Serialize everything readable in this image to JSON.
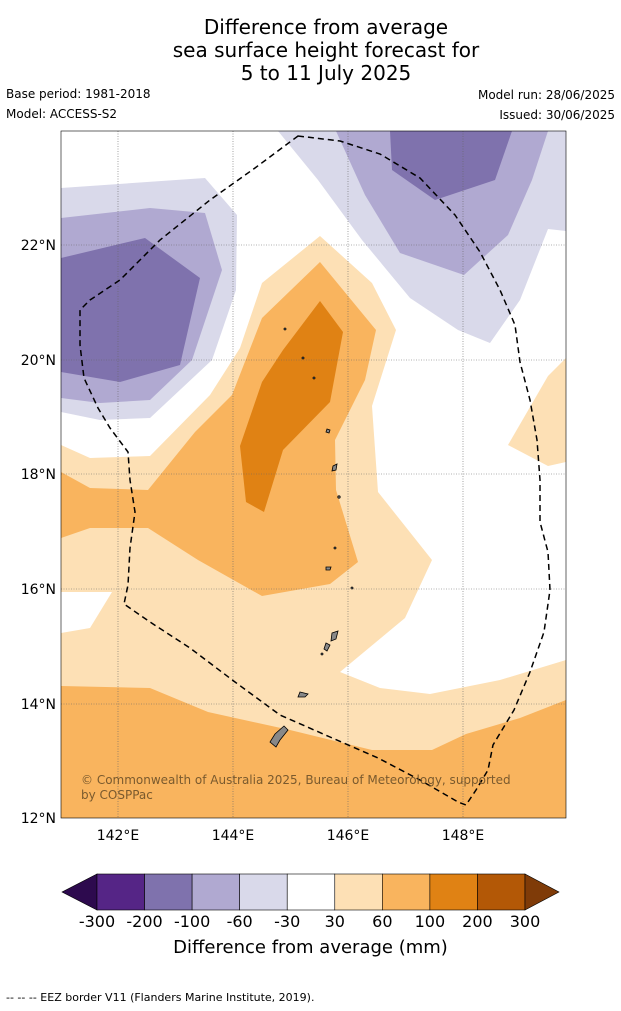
{
  "header": {
    "title_lines": [
      "Difference from average",
      "sea surface height forecast for",
      "5 to 11 July 2025"
    ],
    "base_period": "Base period: 1981-2018",
    "model": "Model: ACCESS-S2",
    "model_run": "Model run: 28/06/2025",
    "issued": "Issued: 30/06/2025"
  },
  "map": {
    "lon_ticks": [
      "142°E",
      "144°E",
      "146°E",
      "148°E"
    ],
    "lat_ticks": [
      "22°N",
      "20°N",
      "18°N",
      "16°N",
      "14°N",
      "12°N"
    ],
    "copyright_lines": [
      "© Commonwealth of Australia 2025, Bureau of Meteorology, supported",
      "by COSPPac"
    ]
  },
  "colorbar": {
    "colors": [
      "#2d0a4e",
      "#552586",
      "#7f72ad",
      "#b0a9d1",
      "#d9d9ea",
      "#ffffff",
      "#fde0b5",
      "#f9b45e",
      "#e08214",
      "#b35806",
      "#7f3b08"
    ],
    "ticks": [
      "-300",
      "-200",
      "-100",
      "-60",
      "-30",
      "30",
      "60",
      "100",
      "200",
      "300"
    ],
    "title": "Difference from average (mm)"
  },
  "footnote": "-- -- -- EEZ border V11 (Flanders Marine Institute, 2019)."
}
